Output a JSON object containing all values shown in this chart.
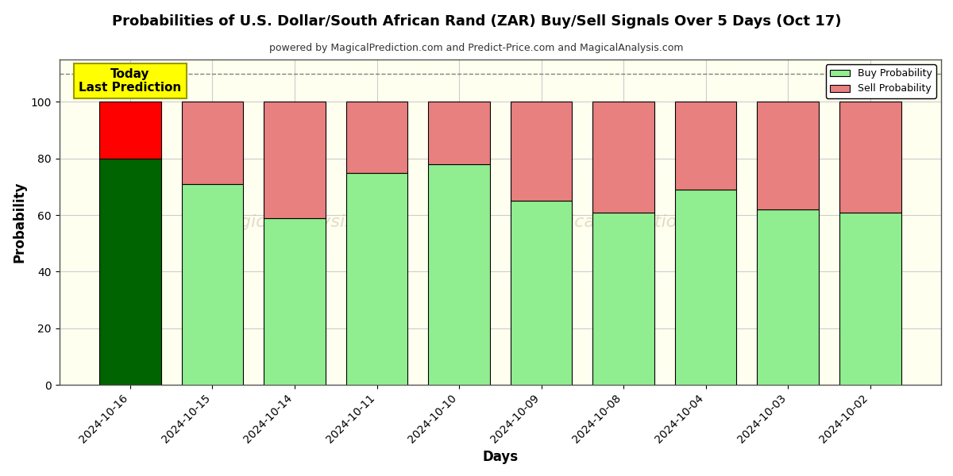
{
  "title": "Probabilities of U.S. Dollar/South African Rand (ZAR) Buy/Sell Signals Over 5 Days (Oct 17)",
  "subtitle": "powered by MagicalPrediction.com and Predict-Price.com and MagicalAnalysis.com",
  "xlabel": "Days",
  "ylabel": "Probability",
  "categories": [
    "2024-10-16",
    "2024-10-15",
    "2024-10-14",
    "2024-10-11",
    "2024-10-10",
    "2024-10-09",
    "2024-10-08",
    "2024-10-04",
    "2024-10-03",
    "2024-10-02"
  ],
  "buy_values": [
    80,
    71,
    59,
    75,
    78,
    65,
    61,
    69,
    62,
    61
  ],
  "sell_values": [
    20,
    29,
    41,
    25,
    22,
    35,
    39,
    31,
    38,
    39
  ],
  "today_buy_color": "#006400",
  "today_sell_color": "#ff0000",
  "buy_color": "#90ee90",
  "sell_color": "#e88080",
  "bar_edge_color": "#000000",
  "ylim": [
    0,
    115
  ],
  "yticks": [
    0,
    20,
    40,
    60,
    80,
    100
  ],
  "dashed_line_y": 110,
  "legend_buy_label": "Buy Probability",
  "legend_sell_label": "Sell Probability",
  "today_label_line1": "Today",
  "today_label_line2": "Last Prediction",
  "today_box_color": "#ffff00",
  "background_color": "#ffffff",
  "plot_bg_color": "#fffff0",
  "grid_color": "#cccccc"
}
